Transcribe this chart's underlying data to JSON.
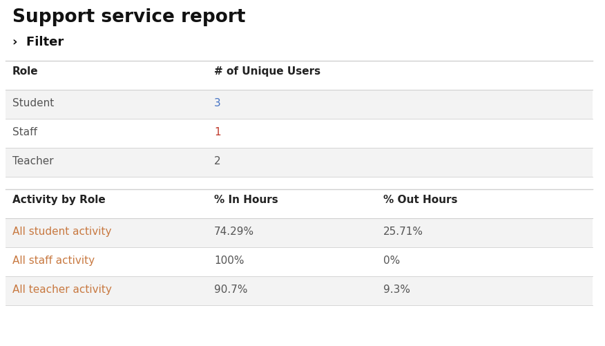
{
  "title": "Support service report",
  "filter_label": "›  Filter",
  "background_color": "#ffffff",
  "table1_header": [
    "Role",
    "# of Unique Users"
  ],
  "table1_rows": [
    [
      "Student",
      "3"
    ],
    [
      "Staff",
      "1"
    ],
    [
      "Teacher",
      "2"
    ]
  ],
  "table1_row_colors": [
    "#f3f3f3",
    "#ffffff",
    "#f3f3f3"
  ],
  "table1_value_colors": [
    "#4472c4",
    "#c0392b",
    "#555555"
  ],
  "table2_header": [
    "Activity by Role",
    "% In Hours",
    "% Out Hours"
  ],
  "table2_rows": [
    [
      "All student activity",
      "74.29%",
      "25.71%"
    ],
    [
      "All staff activity",
      "100%",
      "0%"
    ],
    [
      "All teacher activity",
      "90.7%",
      "9.3%"
    ]
  ],
  "table2_row_colors": [
    "#f3f3f3",
    "#ffffff",
    "#f3f3f3"
  ],
  "table2_role_color": "#c87941",
  "header_color": "#222222",
  "role_col_color": "#555555",
  "data_col_color": "#555555",
  "divider_color": "#d0d0d0",
  "title_color": "#111111",
  "filter_color": "#111111",
  "fig_width": 8.76,
  "fig_height": 5.01,
  "dpi": 100
}
